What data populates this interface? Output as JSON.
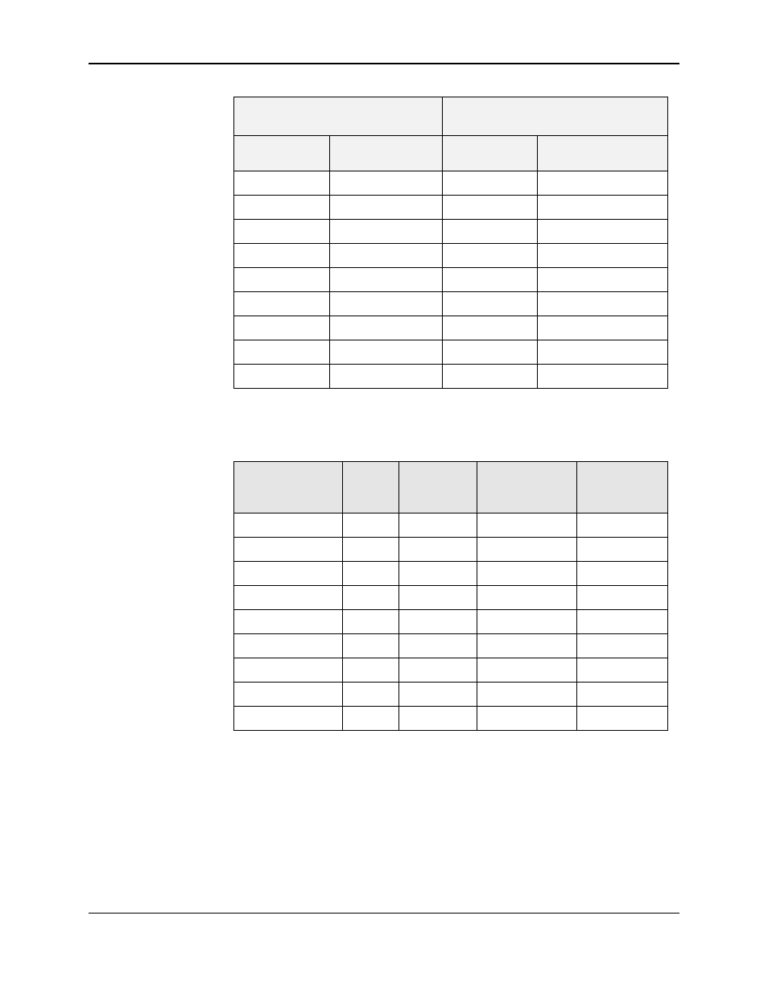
{
  "table1": {
    "type": "table",
    "border_color": "#000000",
    "header_bg": "#f2f2f2",
    "col_widths_pct": [
      22,
      26,
      22,
      30
    ],
    "group_headers": [
      "",
      ""
    ],
    "sub_headers": [
      "",
      "",
      "",
      ""
    ],
    "rows": [
      [
        "",
        "",
        "",
        ""
      ],
      [
        "",
        "",
        "",
        ""
      ],
      [
        "",
        "",
        "",
        ""
      ],
      [
        "",
        "",
        "",
        ""
      ],
      [
        "",
        "",
        "",
        ""
      ],
      [
        "",
        "",
        "",
        ""
      ],
      [
        "",
        "",
        "",
        ""
      ],
      [
        "",
        "",
        "",
        ""
      ],
      [
        "",
        "",
        "",
        ""
      ]
    ],
    "thick_row_index": 6
  },
  "table2": {
    "type": "table",
    "border_color": "#000000",
    "header_bg": "#e5e5e5",
    "col_widths_pct": [
      25,
      13,
      18,
      23,
      21
    ],
    "headers": [
      "",
      "",
      "",
      "",
      ""
    ],
    "rows": [
      [
        "",
        "",
        "",
        "",
        ""
      ],
      [
        "",
        "",
        "",
        "",
        ""
      ],
      [
        "",
        "",
        "",
        "",
        ""
      ],
      [
        "",
        "",
        "",
        "",
        ""
      ],
      [
        "",
        "",
        "",
        "",
        ""
      ],
      [
        "",
        "",
        "",
        "",
        ""
      ],
      [
        "",
        "",
        "",
        "",
        ""
      ],
      [
        "",
        "",
        "",
        "",
        ""
      ],
      [
        "",
        "",
        "",
        "",
        ""
      ]
    ]
  }
}
